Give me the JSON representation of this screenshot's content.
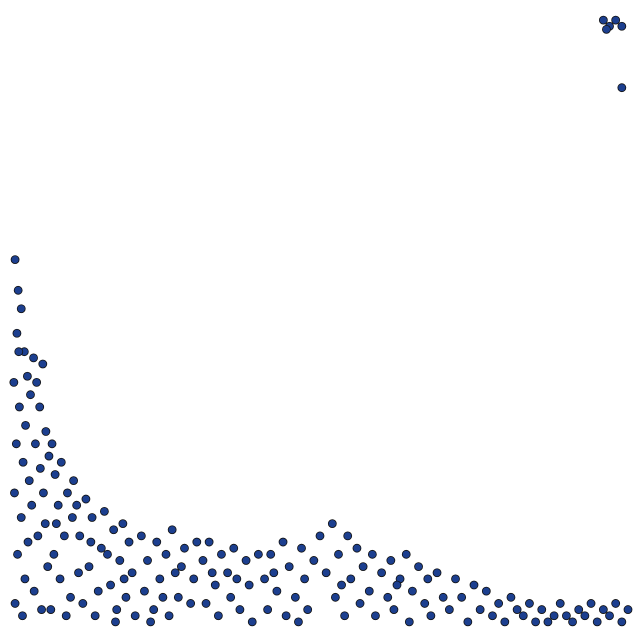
{
  "chart_data": {
    "type": "scatter",
    "color": "#1c3f8f",
    "edgecolor": "#111111",
    "xlim": [
      0,
      100
    ],
    "ylim": [
      0,
      100
    ],
    "x": [
      0.5,
      1,
      0.8,
      1.5,
      2,
      0.3,
      1.2,
      2.5,
      0.7,
      1.8,
      2.2,
      0.4,
      1.5,
      2.8,
      0.9,
      2.1,
      0.5,
      1.7,
      2.6,
      1.1,
      3,
      3.5,
      4,
      4.5,
      5,
      3.8,
      4.6,
      5.5,
      3.2,
      4.2,
      5.1,
      5.8,
      3.6,
      4.8,
      5.4,
      6,
      6.5,
      7,
      7.5,
      8,
      8.5,
      9,
      6.8,
      7.8,
      9.5,
      6.3,
      8.8,
      9.8,
      7.2,
      10,
      10.5,
      11,
      12,
      12.5,
      13,
      14,
      14.5,
      11.5,
      13.5,
      15,
      10.8,
      12.8,
      15.5,
      16,
      16.5,
      17,
      17.5,
      18,
      18.5,
      19,
      19.5,
      20,
      16.8,
      18.2,
      21,
      21.5,
      22,
      23,
      23.5,
      24,
      25,
      25.5,
      26,
      27,
      27.5,
      28,
      29,
      29.5,
      30,
      22.5,
      24.5,
      26.5,
      31,
      31.5,
      32,
      33,
      33.5,
      34,
      35,
      35.5,
      36,
      37,
      38,
      38.5,
      39,
      40,
      32.5,
      36.5,
      41,
      41.5,
      42,
      43,
      44,
      44.5,
      45,
      46,
      47,
      47.5,
      48,
      49,
      50,
      42.5,
      46.5,
      51,
      52,
      52.5,
      53,
      54,
      54.5,
      55,
      56,
      56.5,
      57,
      58,
      58.5,
      59,
      60,
      53.5,
      61,
      61.5,
      62,
      63,
      64,
      64.5,
      65,
      66,
      67,
      67.5,
      68,
      69,
      70,
      62.5,
      71,
      72,
      73,
      74,
      75,
      76,
      77,
      78,
      79,
      80,
      81,
      82,
      83,
      84,
      85,
      86,
      87,
      88,
      89,
      90,
      91,
      92,
      93,
      94,
      95,
      96,
      97,
      98,
      99,
      100,
      96,
      97,
      98,
      99,
      96.5,
      99
    ],
    "values": [
      60,
      55,
      48,
      52,
      45,
      40,
      36,
      41,
      30,
      27,
      33,
      22,
      18,
      24,
      12,
      8,
      4,
      2,
      14,
      45,
      38,
      44,
      40,
      36,
      43,
      30,
      26,
      32,
      20,
      15,
      22,
      10,
      6,
      3,
      17,
      28,
      30,
      25,
      20,
      27,
      15,
      22,
      12,
      8,
      5,
      3,
      2,
      18,
      17,
      24,
      20,
      15,
      21,
      10,
      18,
      6,
      13,
      4,
      2,
      19,
      9,
      14,
      12,
      7,
      16,
      3,
      11,
      17,
      5,
      14,
      9,
      2,
      1,
      8,
      15,
      6,
      11,
      3,
      14,
      8,
      12,
      2,
      16,
      5,
      10,
      13,
      4,
      8,
      14,
      1,
      5,
      9,
      11,
      4,
      14,
      7,
      2,
      12,
      9,
      5,
      13,
      3,
      11,
      7,
      1,
      12,
      9,
      8,
      8,
      3,
      12,
      6,
      14,
      2,
      10,
      5,
      13,
      8,
      3,
      11,
      15,
      9,
      1,
      9,
      17,
      5,
      12,
      2,
      15,
      8,
      13,
      4,
      10,
      6,
      12,
      2,
      9,
      7,
      5,
      11,
      3,
      8,
      12,
      1,
      6,
      10,
      4,
      8,
      2,
      9,
      5,
      7,
      3,
      8,
      5,
      1,
      7,
      3,
      6,
      2,
      4,
      1,
      5,
      3,
      2,
      4,
      1,
      3,
      1,
      2,
      4,
      2,
      1,
      3,
      2,
      4,
      1,
      3,
      2,
      4,
      1,
      3,
      99,
      98,
      99,
      98,
      97.5,
      88
    ]
  }
}
